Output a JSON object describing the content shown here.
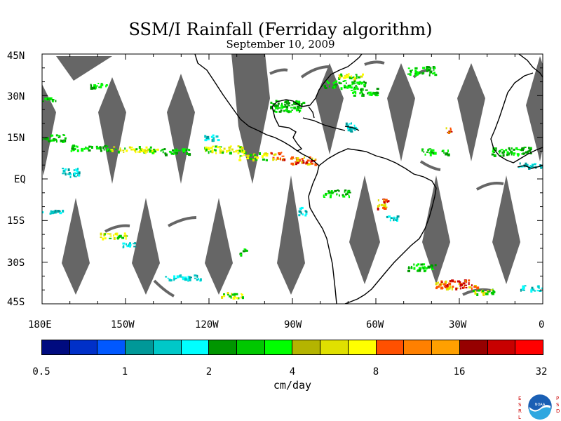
{
  "title": "SSM/I Rainfall (Ferriday algorithm)",
  "subtitle": "September 10, 2009",
  "axes": {
    "lat_labels": [
      "45N",
      "30N",
      "15N",
      "EQ",
      "15S",
      "30S",
      "45S"
    ],
    "lon_labels": [
      "180E",
      "150W",
      "120W",
      "90W",
      "60W",
      "30W",
      "0"
    ]
  },
  "colorbar": {
    "colors": [
      "#000b7f",
      "#0030c8",
      "#0058ff",
      "#009898",
      "#00c8c8",
      "#00ffff",
      "#009600",
      "#00c800",
      "#00ff00",
      "#b4b400",
      "#e0e000",
      "#ffff00",
      "#ff5000",
      "#ff8000",
      "#ffa000",
      "#960000",
      "#c80000",
      "#ff0000"
    ],
    "tick_labels": [
      "0.5",
      "1",
      "2",
      "4",
      "8",
      "16",
      "32"
    ],
    "units": "cm/day"
  },
  "logo": {
    "left_letters": "ESRL",
    "right_letters": "PSD",
    "name": "noaa-logo"
  },
  "colors": {
    "swath_gap": "#666666",
    "coastline": "#000000"
  }
}
